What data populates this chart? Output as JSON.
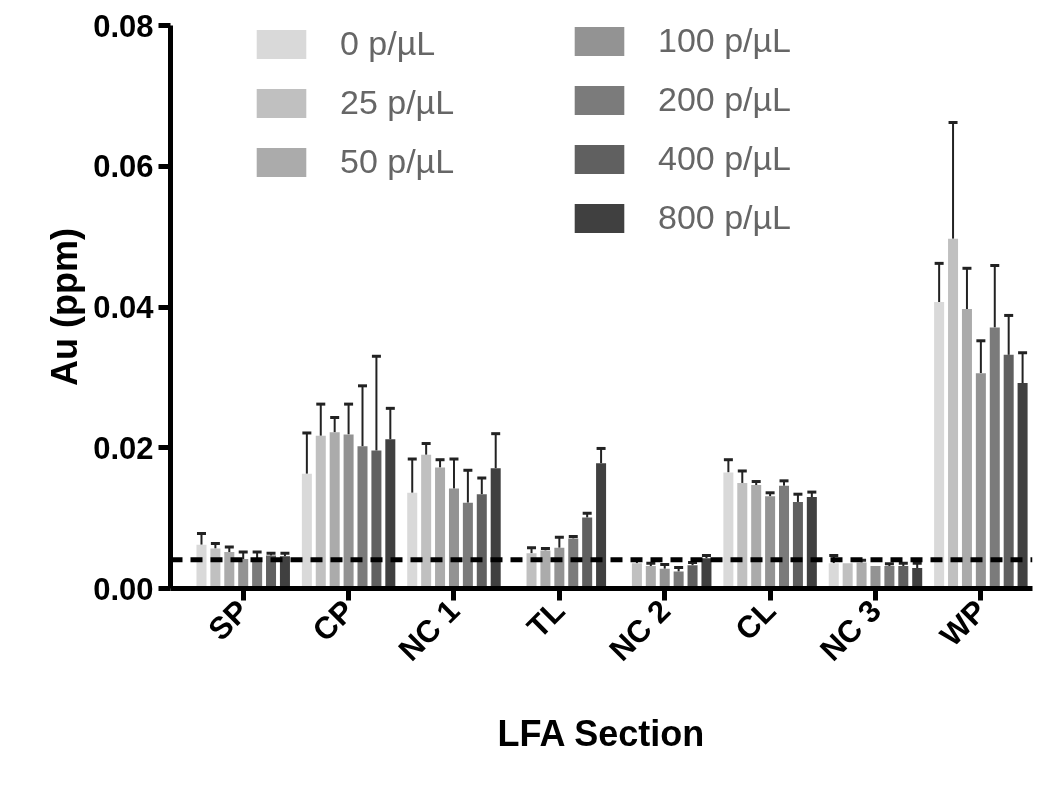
{
  "chart_data": {
    "type": "bar",
    "xlabel": "LFA Section",
    "ylabel": "Au (ppm)",
    "categories": [
      "SP",
      "CP",
      "NC 1",
      "TL",
      "NC 2",
      "CL",
      "NC 3",
      "WP"
    ],
    "ylim": [
      0,
      0.08
    ],
    "yticks": [
      {
        "value": 0,
        "label": "0.00"
      },
      0.02,
      0.04,
      0.06,
      0.08
    ],
    "series": [
      {
        "name": "0 p/µL",
        "color": "#d9d9d9",
        "values": [
          0.0062,
          0.0163,
          0.0136,
          null,
          null,
          0.0165,
          0.0036,
          0.0407
        ],
        "errors": [
          0.0016,
          0.0058,
          0.0048,
          null,
          null,
          0.0018,
          0.0011,
          0.0055
        ]
      },
      {
        "name": "25 p/µL",
        "color": "#c0c0c0",
        "values": [
          0.0057,
          0.0217,
          0.019,
          0.005,
          0.0036,
          0.015,
          0.0036,
          0.0497
        ],
        "errors": [
          0.0007,
          0.0045,
          0.0016,
          0.0008,
          0.0005,
          0.0017,
          null,
          0.0165
        ]
      },
      {
        "name": "50 p/µL",
        "color": "#ababab",
        "values": [
          0.0052,
          0.0222,
          0.0172,
          0.0054,
          0.0032,
          0.0147,
          0.0037,
          0.0397
        ],
        "errors": [
          0.0007,
          0.0021,
          0.0011,
          0.0003,
          0.0004,
          0.0005,
          0.0003,
          0.0058
        ]
      },
      {
        "name": "100 p/µL",
        "color": "#939393",
        "values": [
          0.0042,
          0.0219,
          0.0142,
          0.0058,
          0.0028,
          0.0131,
          0.0032,
          0.0306
        ],
        "errors": [
          0.001,
          0.0043,
          0.0042,
          0.0015,
          0.0006,
          0.0005,
          null,
          0.0046
        ]
      },
      {
        "name": "200 p/µL",
        "color": "#7b7b7b",
        "values": [
          0.004,
          0.0202,
          0.0122,
          0.0071,
          0.0024,
          0.0146,
          0.0032,
          0.0371
        ],
        "errors": [
          0.0012,
          0.0086,
          0.0046,
          0.0003,
          0.0006,
          0.0007,
          0.0003,
          0.0088
        ]
      },
      {
        "name": "400 p/µL",
        "color": "#606060",
        "values": [
          0.0047,
          0.0196,
          0.0134,
          0.0101,
          0.0033,
          0.0123,
          0.0032,
          0.0332
        ],
        "errors": [
          0.0003,
          0.0134,
          0.0023,
          0.0006,
          0.0004,
          0.0011,
          0.0004,
          0.0056
        ]
      },
      {
        "name": "800 p/µL",
        "color": "#404040",
        "values": [
          0.0046,
          0.0212,
          0.0171,
          0.0178,
          0.0043,
          0.013,
          0.0029,
          0.0292
        ],
        "errors": [
          0.0004,
          0.0044,
          0.0049,
          0.0021,
          0.0004,
          0.0007,
          0.0007,
          0.0043
        ]
      }
    ],
    "ref_lines": [
      {
        "axis": "y",
        "value": 0.0041,
        "label": null,
        "color": "#000000",
        "line_style": "dashed"
      }
    ],
    "legend": "top left",
    "grid": false
  }
}
